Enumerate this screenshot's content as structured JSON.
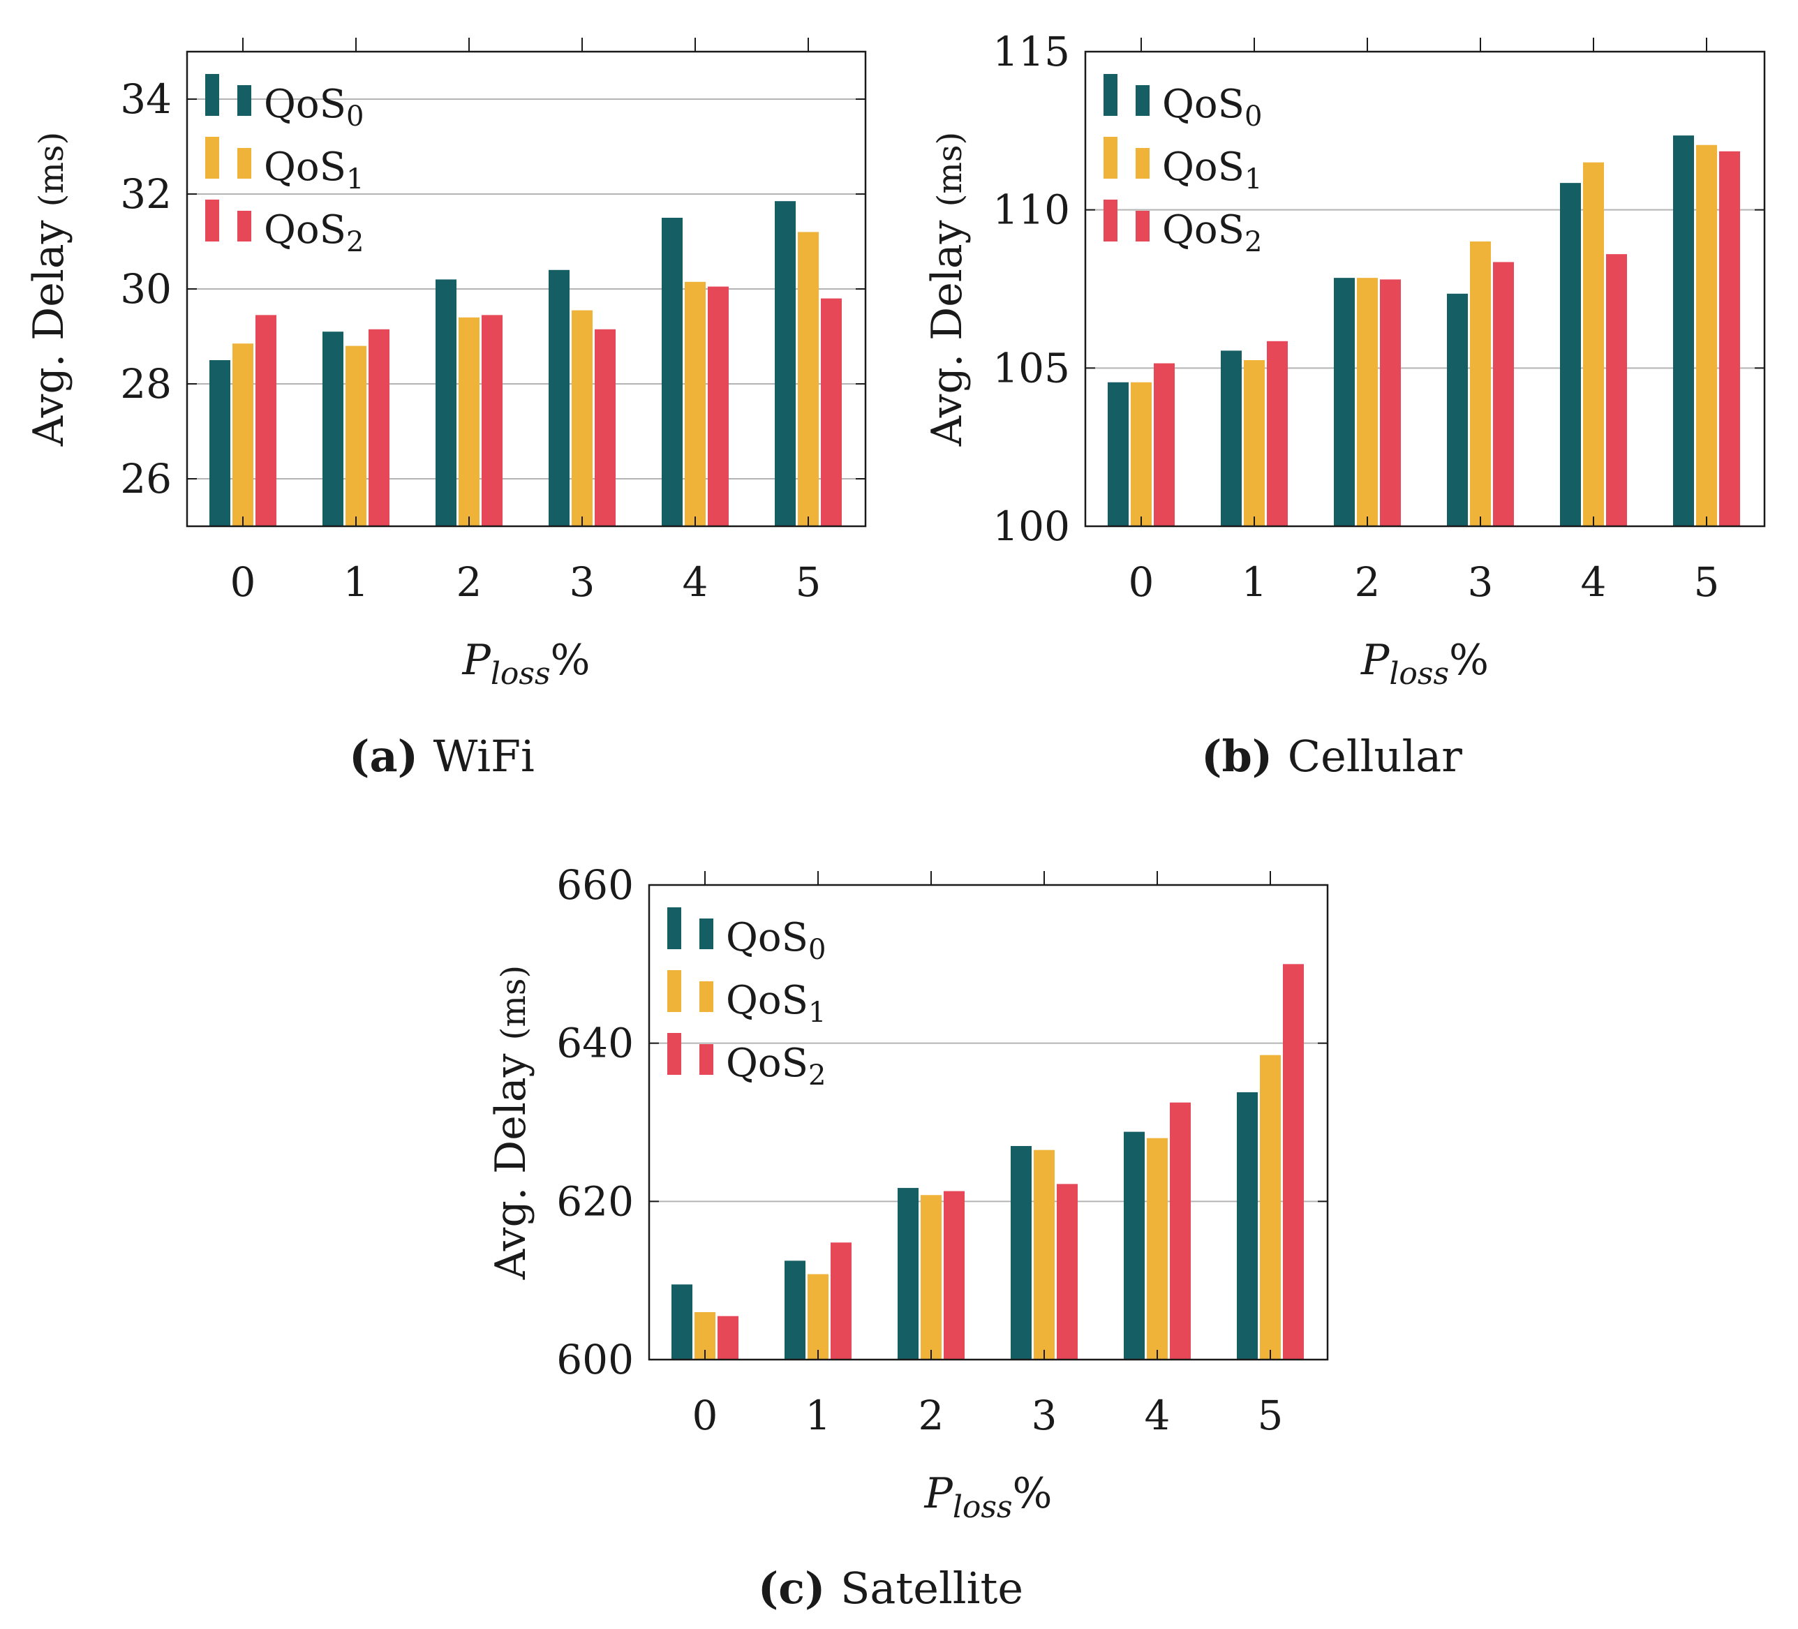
{
  "colors": {
    "QoS0": "#155e63",
    "QoS1": "#f0b33a",
    "QoS2": "#e64858"
  },
  "chart_data": [
    {
      "type": "bar",
      "caption_letter": "(a)",
      "caption_text": "WiFi",
      "categories": [
        "0",
        "1",
        "2",
        "3",
        "4",
        "5"
      ],
      "xlabel_main": "P",
      "xlabel_sub": "loss",
      "xlabel_suffix": "%",
      "ylabel_main": "Avg. Delay",
      "ylabel_unit": "(ms)",
      "ylim": [
        25,
        35
      ],
      "yticks": [
        26,
        28,
        30,
        32,
        34
      ],
      "grid": true,
      "legend_position": "top-left",
      "series": [
        {
          "name": "QoS",
          "sub": "0",
          "key": "QoS0",
          "values": [
            28.5,
            29.1,
            30.2,
            30.4,
            31.5,
            31.85
          ]
        },
        {
          "name": "QoS",
          "sub": "1",
          "key": "QoS1",
          "values": [
            28.85,
            28.8,
            29.4,
            29.55,
            30.15,
            31.2
          ]
        },
        {
          "name": "QoS",
          "sub": "2",
          "key": "QoS2",
          "values": [
            29.45,
            29.15,
            29.45,
            29.15,
            30.05,
            29.8
          ]
        }
      ]
    },
    {
      "type": "bar",
      "caption_letter": "(b)",
      "caption_text": "Cellular",
      "categories": [
        "0",
        "1",
        "2",
        "3",
        "4",
        "5"
      ],
      "xlabel_main": "P",
      "xlabel_sub": "loss",
      "xlabel_suffix": "%",
      "ylabel_main": "Avg. Delay",
      "ylabel_unit": "(ms)",
      "ylim": [
        100,
        115
      ],
      "yticks": [
        100,
        105,
        110,
        115
      ],
      "grid": true,
      "legend_position": "top-left",
      "series": [
        {
          "name": "QoS",
          "sub": "0",
          "key": "QoS0",
          "values": [
            104.55,
            105.55,
            107.85,
            107.35,
            110.85,
            112.35
          ]
        },
        {
          "name": "QoS",
          "sub": "1",
          "key": "QoS1",
          "values": [
            104.55,
            105.25,
            107.85,
            109.0,
            111.5,
            112.05
          ]
        },
        {
          "name": "QoS",
          "sub": "2",
          "key": "QoS2",
          "values": [
            105.15,
            105.85,
            107.8,
            108.35,
            108.6,
            111.85
          ]
        }
      ]
    },
    {
      "type": "bar",
      "caption_letter": "(c)",
      "caption_text": "Satellite",
      "categories": [
        "0",
        "1",
        "2",
        "3",
        "4",
        "5"
      ],
      "xlabel_main": "P",
      "xlabel_sub": "loss",
      "xlabel_suffix": "%",
      "ylabel_main": "Avg. Delay",
      "ylabel_unit": "(ms)",
      "ylim": [
        600,
        660
      ],
      "yticks": [
        600,
        620,
        640,
        660
      ],
      "grid": true,
      "legend_position": "top-left",
      "series": [
        {
          "name": "QoS",
          "sub": "0",
          "key": "QoS0",
          "values": [
            609.5,
            612.5,
            621.7,
            627.0,
            628.8,
            633.8
          ]
        },
        {
          "name": "QoS",
          "sub": "1",
          "key": "QoS1",
          "values": [
            606.0,
            610.8,
            620.8,
            626.5,
            628.0,
            638.5
          ]
        },
        {
          "name": "QoS",
          "sub": "2",
          "key": "QoS2",
          "values": [
            605.5,
            614.8,
            621.3,
            622.2,
            632.5,
            650.0
          ]
        }
      ]
    }
  ]
}
